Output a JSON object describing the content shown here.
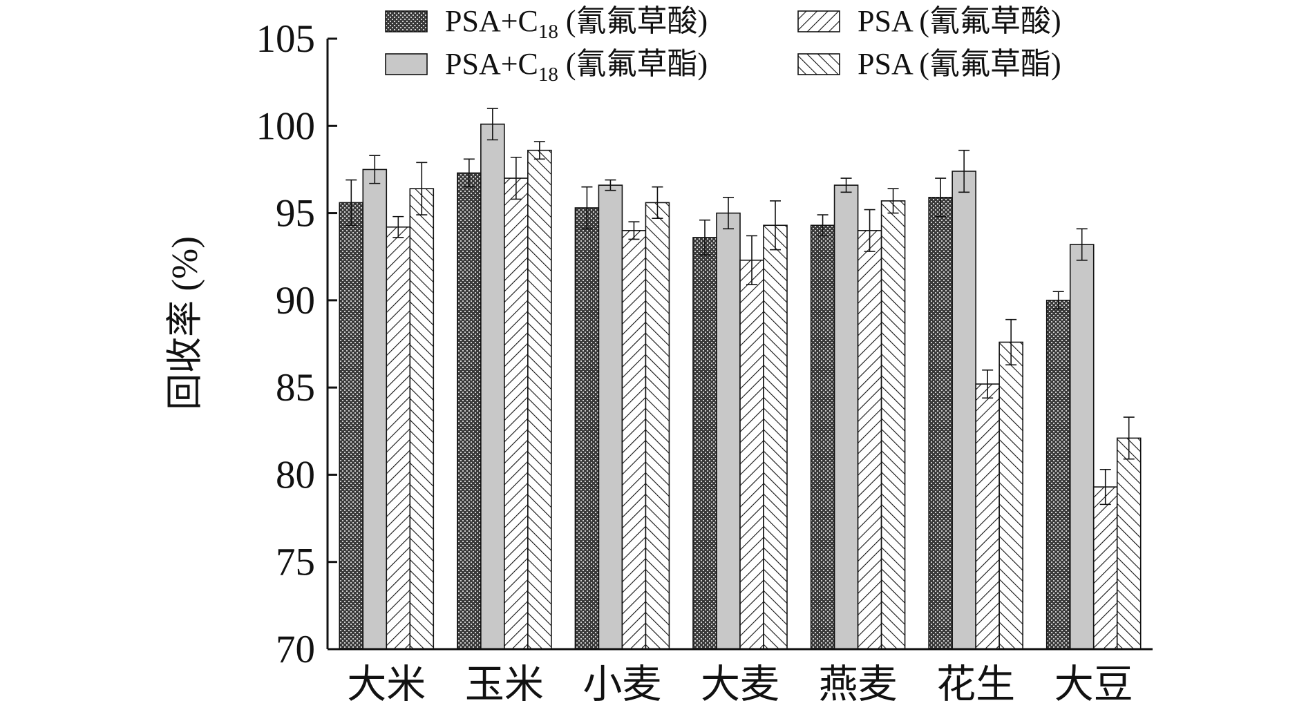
{
  "chart_data": {
    "type": "bar",
    "categories": [
      "大米",
      "玉米",
      "小麦",
      "大麦",
      "燕麦",
      "花生",
      "大豆"
    ],
    "ylabel": "回收率 (%)",
    "ylim": [
      70,
      105
    ],
    "yticks": [
      70,
      75,
      80,
      85,
      90,
      95,
      100,
      105
    ],
    "series": [
      {
        "name": "PSA+C18 (氰氟草酸)",
        "name_main": "PSA+C",
        "name_sub": "18",
        "name_tail": " (氰氟草酸)",
        "pattern": "dense-dots",
        "values": [
          95.6,
          97.3,
          95.3,
          93.6,
          94.3,
          95.9,
          90.0
        ],
        "errors": [
          1.3,
          0.8,
          1.2,
          1.0,
          0.6,
          1.1,
          0.5
        ]
      },
      {
        "name": "PSA+C18 (氰氟草酯)",
        "name_main": "PSA+C",
        "name_sub": "18",
        "name_tail": " (氰氟草酯)",
        "pattern": "solid-gray",
        "values": [
          97.5,
          100.1,
          96.6,
          95.0,
          96.6,
          97.4,
          93.2
        ],
        "errors": [
          0.8,
          0.9,
          0.3,
          0.9,
          0.4,
          1.2,
          0.9
        ]
      },
      {
        "name": "PSA (氰氟草酸)",
        "name_main": "PSA (氰氟草酸)",
        "name_sub": "",
        "name_tail": "",
        "pattern": "forward-hatch",
        "values": [
          94.2,
          97.0,
          94.0,
          92.3,
          94.0,
          85.2,
          79.3
        ],
        "errors": [
          0.6,
          1.2,
          0.5,
          1.4,
          1.2,
          0.8,
          1.0
        ]
      },
      {
        "name": "PSA (氰氟草酯)",
        "name_main": "PSA (氰氟草酯)",
        "name_sub": "",
        "name_tail": "",
        "pattern": "back-hatch",
        "values": [
          96.4,
          98.6,
          95.6,
          94.3,
          95.7,
          87.6,
          82.1
        ],
        "errors": [
          1.5,
          0.5,
          0.9,
          1.4,
          0.7,
          1.3,
          1.2
        ]
      }
    ],
    "legend_position": "top",
    "grid": false
  }
}
